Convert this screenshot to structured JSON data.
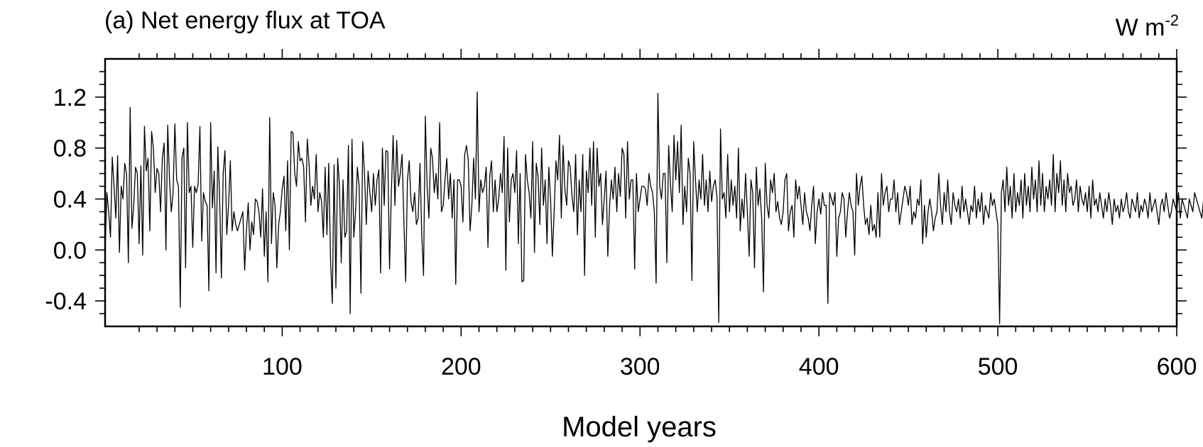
{
  "chart_data": {
    "type": "line",
    "title": "(a) Net energy flux at TOA",
    "units_label": "W m",
    "units_exponent": "-2",
    "xlabel": "Model years",
    "ylabel": "",
    "xlim": [
      1,
      600
    ],
    "ylim": [
      -0.6,
      1.5
    ],
    "x_ticks": [
      100,
      200,
      300,
      400,
      500,
      600
    ],
    "x_tick_labels": [
      "100",
      "200",
      "300",
      "400",
      "500",
      "600"
    ],
    "y_ticks": [
      -0.4,
      0.0,
      0.4,
      0.8,
      1.2
    ],
    "y_tick_labels": [
      "-0.4",
      "0.0",
      "0.4",
      "0.8",
      "1.2"
    ],
    "grid": false,
    "legend": "none",
    "line_color": "#000000",
    "x_start": 1,
    "x_step": 1,
    "series": [
      {
        "values": [
          -0.02,
          0.45,
          0.3,
          0.1,
          0.73,
          0.5,
          0.25,
          0.74,
          -0.02,
          0.5,
          0.4,
          0.68,
          0.6,
          -0.1,
          1.12,
          0.17,
          0.35,
          0.65,
          0.6,
          0.05,
          0.66,
          -0.04,
          0.97,
          0.62,
          0.72,
          0.15,
          0.93,
          0.8,
          0.45,
          0.64,
          0.6,
          0.3,
          0.72,
          0.84,
          0.0,
          0.98,
          0.55,
          0.3,
          0.45,
          0.99,
          0.55,
          0.5,
          -0.45,
          0.72,
          0.8,
          -0.14,
          1.0,
          0.45,
          0.5,
          0.02,
          0.5,
          0.45,
          0.52,
          0.97,
          0.07,
          0.45,
          0.38,
          0.35,
          -0.32,
          1.0,
          0.33,
          0.62,
          -0.18,
          0.81,
          0.42,
          -0.22,
          0.6,
          0.78,
          0.12,
          0.35,
          0.7,
          0.15,
          0.3,
          0.2,
          0.15,
          0.2,
          0.25,
          0.3,
          -0.16,
          0.15,
          0.37,
          0.0,
          0.22,
          0.12,
          0.4,
          0.38,
          0.3,
          0.1,
          0.48,
          -0.05,
          0.3,
          -0.25,
          1.04,
          0.05,
          0.45,
          0.35,
          -0.14,
          0.2,
          0.3,
          0.48,
          0.58,
          0.15,
          0.7,
          0.0,
          0.93,
          0.92,
          0.6,
          0.5,
          0.85,
          0.7,
          0.72,
          0.65,
          0.22,
          0.87,
          0.68,
          0.35,
          0.5,
          0.4,
          0.75,
          0.3,
          0.45,
          0.38,
          0.1,
          0.65,
          0.12,
          0.68,
          -0.07,
          -0.42,
          0.67,
          -0.3,
          0.72,
          0.5,
          -0.1,
          0.55,
          0.1,
          0.15,
          0.82,
          -0.5,
          0.87,
          0.1,
          0.3,
          0.65,
          0.5,
          -0.34,
          0.85,
          0.6,
          0.2,
          0.62,
          0.45,
          0.3,
          0.6,
          0.35,
          0.55,
          0.63,
          -0.18,
          0.8,
          0.35,
          0.78,
          0.77,
          -0.15,
          0.45,
          0.9,
          0.35,
          0.86,
          0.5,
          0.6,
          0.75,
          0.23,
          -0.25,
          0.55,
          0.7,
          0.38,
          0.3,
          0.45,
          0.2,
          0.25,
          0.68,
          0.12,
          -0.2,
          1.05,
          0.5,
          0.25,
          0.8,
          0.72,
          0.45,
          0.6,
          0.4,
          1.0,
          0.3,
          0.35,
          0.55,
          0.72,
          0.4,
          0.6,
          0.25,
          0.55,
          -0.27,
          0.55,
          0.55,
          0.5,
          0.22,
          0.75,
          0.82,
          0.7,
          0.15,
          0.35,
          0.72,
          0.4,
          1.24,
          0.3,
          0.55,
          0.45,
          0.5,
          0.65,
          0.02,
          0.58,
          0.7,
          0.3,
          0.55,
          0.3,
          0.4,
          0.6,
          0.45,
          0.89,
          -0.16,
          0.8,
          0.22,
          0.55,
          0.6,
          0.45,
          0.78,
          0.05,
          0.6,
          -0.25,
          -0.24,
          0.75,
          0.55,
          0.45,
          0.25,
          0.85,
          -0.02,
          0.68,
          0.58,
          0.2,
          0.8,
          0.35,
          0.55,
          0.05,
          0.65,
          0.4,
          -0.05,
          0.3,
          0.7,
          0.55,
          0.9,
          0.25,
          0.82,
          0.48,
          0.35,
          0.7,
          0.65,
          0.42,
          0.3,
          0.75,
          0.12,
          0.55,
          0.3,
          0.75,
          -0.2,
          0.62,
          0.45,
          0.8,
          0.35,
          0.85,
          0.1,
          0.8,
          0.5,
          0.6,
          0.2,
          0.4,
          0.62,
          -0.05,
          0.35,
          0.55,
          0.4,
          0.65,
          0.3,
          0.6,
          0.42,
          0.8,
          0.75,
          0.25,
          0.85,
          0.4,
          0.55,
          0.55,
          -0.15,
          0.6,
          0.3,
          0.4,
          0.5,
          0.5,
          0.48,
          0.35,
          0.6,
          0.5,
          0.45,
          0.3,
          -0.26,
          1.23,
          0.5,
          0.4,
          0.6,
          0.6,
          -0.1,
          0.82,
          0.52,
          0.3,
          0.9,
          0.55,
          0.85,
          0.45,
          0.98,
          0.2,
          0.5,
          0.3,
          0.72,
          0.6,
          -0.24,
          0.85,
          0.55,
          0.3,
          0.55,
          0.4,
          0.75,
          0.35,
          0.55,
          0.3,
          0.62,
          0.38,
          0.5,
          0.55,
          0.42,
          -0.57,
          0.95,
          0.4,
          0.45,
          0.25,
          0.75,
          0.3,
          0.55,
          0.35,
          0.5,
          0.25,
          0.8,
          0.15,
          0.4,
          0.25,
          0.6,
          0.3,
          -0.05,
          0.55,
          0.45,
          -0.14,
          0.65,
          0.35,
          0.48,
          0.25,
          -0.33,
          0.68,
          0.35,
          0.25,
          0.55,
          0.45,
          0.6,
          0.3,
          0.38,
          0.25,
          0.2,
          0.3,
          0.55,
          0.6,
          0.15,
          0.3,
          0.35,
          0.1,
          0.55,
          0.4,
          0.5,
          0.35,
          0.2,
          0.45,
          0.3,
          0.25,
          0.15,
          0.35,
          0.5,
          0.05,
          0.3,
          0.4,
          0.28,
          0.45,
          0.35,
          0.35,
          -0.42,
          0.45,
          0.4,
          0.35,
          0.45,
          -0.05,
          0.25,
          0.3,
          0.45,
          0.4,
          0.1,
          0.3,
          0.45,
          0.35,
          0.3,
          -0.04,
          0.6,
          0.35,
          0.5,
          0.58,
          0.35,
          0.2,
          0.25,
          0.12,
          0.35,
          0.15,
          0.2,
          0.1,
          0.45,
          0.1,
          0.6,
          0.35,
          0.45,
          0.5,
          0.3,
          0.4,
          0.4,
          0.55,
          0.3,
          0.45,
          0.2,
          0.3,
          0.4,
          0.5,
          0.45,
          0.35,
          0.5,
          0.2,
          0.3,
          0.25,
          0.4,
          0.35,
          0.55,
          0.05,
          0.35,
          0.1,
          0.3,
          0.4,
          0.3,
          0.15,
          0.25,
          0.3,
          0.6,
          0.35,
          0.2,
          0.45,
          0.3,
          0.55,
          0.3,
          0.2,
          0.45,
          0.35,
          0.3,
          0.4,
          0.25,
          0.5,
          0.3,
          0.4,
          0.3,
          0.2,
          0.35,
          0.3,
          0.5,
          0.25,
          0.4,
          0.3,
          0.45,
          0.2,
          0.35,
          0.3,
          0.25,
          0.45,
          0.35,
          0.4,
          0.3,
          0.2,
          -0.58,
          0.45,
          0.55,
          0.3,
          0.65,
          0.35,
          0.5,
          0.25,
          0.6,
          0.3,
          0.45,
          0.35,
          0.55,
          0.25,
          0.6,
          0.35,
          0.5,
          0.3,
          0.65,
          0.4,
          0.55,
          0.3,
          0.7,
          0.35,
          0.6,
          0.3,
          0.5,
          0.4,
          0.55,
          0.35,
          0.75,
          0.3,
          0.6,
          0.45,
          0.7,
          0.35,
          0.55,
          0.3,
          0.6,
          0.45,
          0.5,
          0.35,
          0.4,
          0.55,
          0.3,
          0.5,
          0.4,
          0.35,
          0.45,
          0.3,
          0.5,
          0.25,
          0.55,
          0.35,
          0.4,
          0.3,
          0.45,
          0.35,
          0.25,
          0.4,
          0.3,
          0.45,
          0.35,
          0.2,
          0.4,
          0.3,
          0.35,
          0.25,
          0.4,
          0.3,
          0.35,
          0.45,
          0.3,
          0.25,
          0.4,
          0.35,
          0.3,
          0.45,
          0.25,
          0.35,
          0.3,
          0.4,
          0.35,
          0.25,
          0.45,
          0.3,
          0.35,
          0.4,
          0.3,
          0.2,
          0.35,
          0.4,
          0.3,
          0.45,
          0.35,
          0.25,
          0.3,
          0.4,
          0.35,
          0.3,
          0.45,
          0.25,
          0.4,
          0.35,
          0.3,
          0.25,
          0.4,
          0.35,
          0.3,
          0.45,
          0.4,
          0.35,
          0.3,
          0.25,
          0.4,
          0.3,
          0.35,
          0.45,
          0.3,
          0.4,
          0.35,
          0.3,
          0.25,
          0.4,
          0.35,
          0.45,
          0.3,
          0.4,
          0.35,
          0.3
        ]
      }
    ]
  }
}
